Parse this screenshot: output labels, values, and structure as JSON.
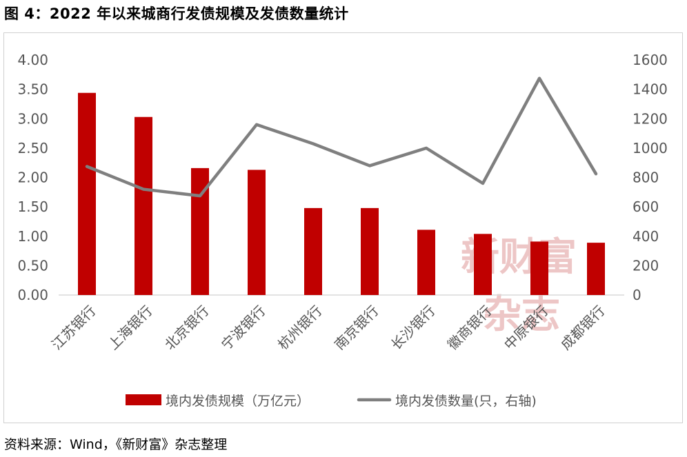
{
  "figure": {
    "title": "图 4：2022 年以来城商行发债规模及发债数量统计",
    "source": "资料来源：Wind，《新财富》杂志整理",
    "watermark": [
      "新财富",
      "杂志"
    ]
  },
  "colors": {
    "bar": "#c00000",
    "line": "#7f7f7f",
    "axis": "#d9d9d9"
  },
  "chart_data": {
    "type": "bar+line",
    "categories": [
      "江苏银行",
      "上海银行",
      "北京银行",
      "宁波银行",
      "杭州银行",
      "南京银行",
      "长沙银行",
      "徽商银行",
      "中原银行",
      "成都银行"
    ],
    "series": [
      {
        "name": "境内发债规模（万亿元）",
        "type": "bar",
        "axis": "left",
        "values": [
          3.44,
          3.03,
          2.16,
          2.13,
          1.48,
          1.48,
          1.11,
          1.04,
          0.91,
          0.89
        ]
      },
      {
        "name": "境内发债数量(只，右轴)",
        "type": "line",
        "axis": "right",
        "values": [
          875,
          720,
          675,
          1160,
          1030,
          880,
          1000,
          760,
          1475,
          825
        ]
      }
    ],
    "left_axis": {
      "min": 0,
      "max": 4,
      "step": 0.5,
      "ticks": [
        "0.00",
        "0.50",
        "1.00",
        "1.50",
        "2.00",
        "2.50",
        "3.00",
        "3.50",
        "4.00"
      ]
    },
    "right_axis": {
      "min": 0,
      "max": 1600,
      "step": 200,
      "ticks": [
        "0",
        "200",
        "400",
        "600",
        "800",
        "1000",
        "1200",
        "1400",
        "1600"
      ]
    },
    "legend_position": "bottom",
    "grid": false
  }
}
